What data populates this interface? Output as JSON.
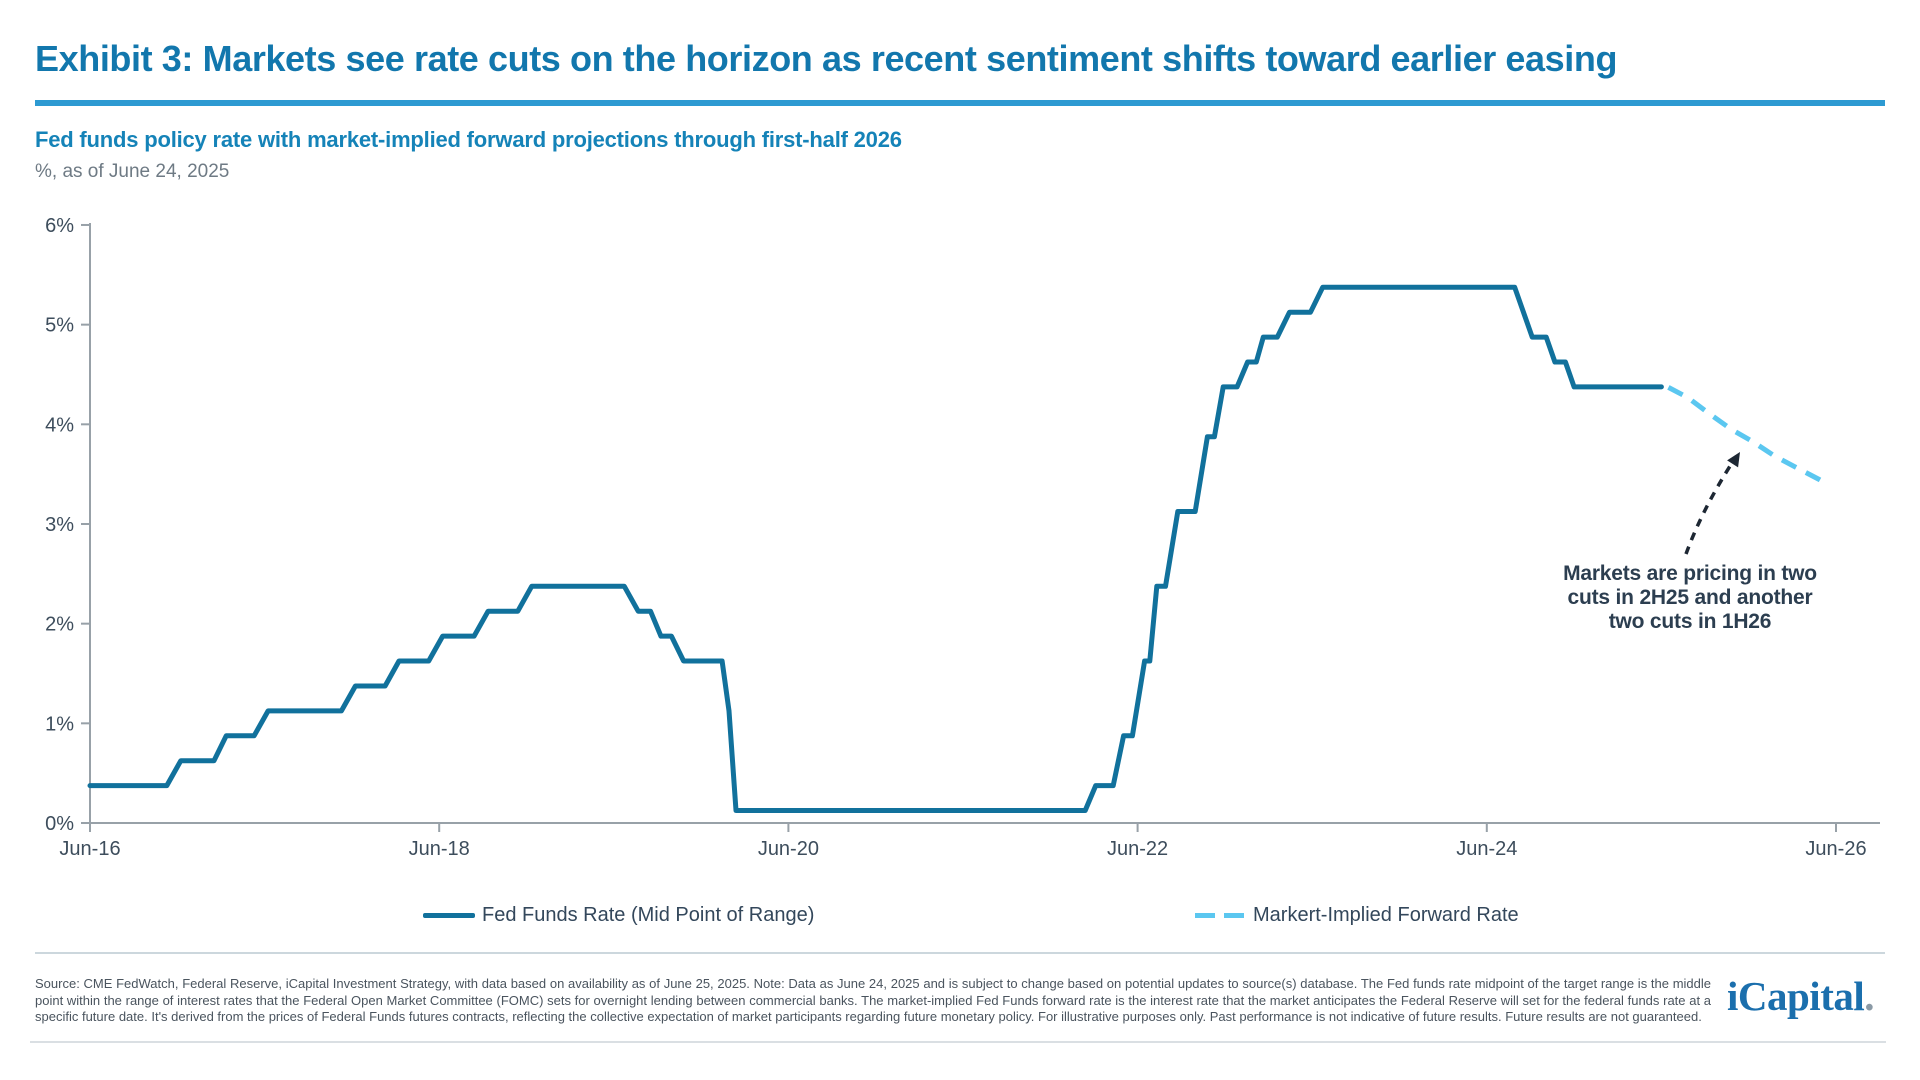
{
  "header": {
    "title": "Exhibit 3: Markets see rate cuts on the horizon as recent sentiment shifts toward earlier easing",
    "subtitle": "Fed funds policy rate with market-implied forward projections through first-half 2026",
    "caption": "%, as of June 24, 2025"
  },
  "chart_data": {
    "type": "line",
    "title": "Fed funds policy rate with market-implied forward projections through first-half 2026",
    "xlabel": "",
    "ylabel": "%",
    "x_unit": "years since Jun-2016 (point format [t_years, rate_percent])",
    "x_range_years": [
      0,
      10
    ],
    "ylim": [
      0,
      6
    ],
    "grid": false,
    "legend_position": "bottom",
    "x_ticks": [
      {
        "label": "Jun-16",
        "t": 0
      },
      {
        "label": "Jun-18",
        "t": 2
      },
      {
        "label": "Jun-20",
        "t": 4
      },
      {
        "label": "Jun-22",
        "t": 6
      },
      {
        "label": "Jun-24",
        "t": 8
      },
      {
        "label": "Jun-26",
        "t": 10
      }
    ],
    "y_ticks": [
      {
        "label": "0%",
        "value": 0
      },
      {
        "label": "1%",
        "value": 1
      },
      {
        "label": "2%",
        "value": 2
      },
      {
        "label": "3%",
        "value": 3
      },
      {
        "label": "4%",
        "value": 4
      },
      {
        "label": "5%",
        "value": 5
      },
      {
        "label": "6%",
        "value": 6
      }
    ],
    "series": [
      {
        "name": "Fed Funds Rate (Mid Point of Range)",
        "style": "solid",
        "color": "#11719c",
        "points": [
          [
            0.0,
            0.375
          ],
          [
            0.44,
            0.375
          ],
          [
            0.52,
            0.625
          ],
          [
            0.71,
            0.625
          ],
          [
            0.78,
            0.875
          ],
          [
            0.94,
            0.875
          ],
          [
            1.02,
            1.125
          ],
          [
            1.44,
            1.125
          ],
          [
            1.52,
            1.375
          ],
          [
            1.69,
            1.375
          ],
          [
            1.77,
            1.625
          ],
          [
            1.94,
            1.625
          ],
          [
            2.02,
            1.875
          ],
          [
            2.2,
            1.875
          ],
          [
            2.28,
            2.125
          ],
          [
            2.45,
            2.125
          ],
          [
            2.53,
            2.375
          ],
          [
            3.06,
            2.375
          ],
          [
            3.14,
            2.125
          ],
          [
            3.21,
            2.125
          ],
          [
            3.27,
            1.875
          ],
          [
            3.33,
            1.875
          ],
          [
            3.4,
            1.625
          ],
          [
            3.62,
            1.625
          ],
          [
            3.66,
            1.125
          ],
          [
            3.7,
            0.125
          ],
          [
            5.7,
            0.125
          ],
          [
            5.76,
            0.375
          ],
          [
            5.86,
            0.375
          ],
          [
            5.92,
            0.875
          ],
          [
            5.97,
            0.875
          ],
          [
            6.04,
            1.625
          ],
          [
            6.07,
            1.625
          ],
          [
            6.11,
            2.375
          ],
          [
            6.16,
            2.375
          ],
          [
            6.23,
            3.125
          ],
          [
            6.33,
            3.125
          ],
          [
            6.4,
            3.875
          ],
          [
            6.44,
            3.875
          ],
          [
            6.49,
            4.375
          ],
          [
            6.57,
            4.375
          ],
          [
            6.63,
            4.625
          ],
          [
            6.68,
            4.625
          ],
          [
            6.72,
            4.875
          ],
          [
            6.8,
            4.875
          ],
          [
            6.87,
            5.125
          ],
          [
            6.99,
            5.125
          ],
          [
            7.06,
            5.375
          ],
          [
            8.16,
            5.375
          ],
          [
            8.26,
            4.875
          ],
          [
            8.34,
            4.875
          ],
          [
            8.39,
            4.625
          ],
          [
            8.45,
            4.625
          ],
          [
            8.5,
            4.375
          ],
          [
            9.0,
            4.375
          ]
        ]
      },
      {
        "name": "Markert-Implied Forward Rate",
        "style": "dashed",
        "color": "#5bc7f0",
        "points": [
          [
            9.04,
            4.37
          ],
          [
            9.15,
            4.27
          ],
          [
            9.28,
            4.1
          ],
          [
            9.4,
            3.95
          ],
          [
            9.52,
            3.83
          ],
          [
            9.65,
            3.68
          ],
          [
            9.78,
            3.56
          ],
          [
            9.9,
            3.45
          ],
          [
            9.95,
            3.4
          ]
        ]
      }
    ],
    "annotation": {
      "lines": [
        "Markets are pricing in two",
        "cuts in 2H25 and another",
        "two cuts in 1H26"
      ]
    }
  },
  "legend": {
    "fed_funds_label": "Fed Funds Rate (Mid Point of Range)",
    "forward_label": "Markert-Implied Forward Rate"
  },
  "footer": {
    "source_text": "Source: CME FedWatch, Federal Reserve, iCapital Investment Strategy, with data based on availability as of June 25, 2025. Note: Data as June 24, 2025 and is subject to change based on potential updates to source(s) database. The Fed funds rate midpoint of the target range is the middle point within the range of interest rates that the Federal Open Market Committee (FOMC) sets for overnight lending between commercial banks. The market-implied Fed Funds forward rate is the interest rate that the market anticipates the Federal Reserve will set for the federal funds rate at a specific future date. It's derived from the prices of Federal Funds futures contracts, reflecting the collective expectation of market participants regarding future monetary policy. For illustrative purposes only. Past performance is not indicative of future results. Future results are not guaranteed.",
    "logo_text": "iCapital",
    "logo_dot": "."
  },
  "colors": {
    "title_blue": "#1277ad",
    "rule_blue": "#2d9ad2",
    "subtitle_blue": "#1583b8",
    "solid_line": "#11719c",
    "forward_line": "#5bc7f0",
    "axis_gray": "#98a1a8",
    "axis_text": "#3d4d5c",
    "annotation_navy": "#2c3e50",
    "arrow_dark": "#1d2733"
  }
}
